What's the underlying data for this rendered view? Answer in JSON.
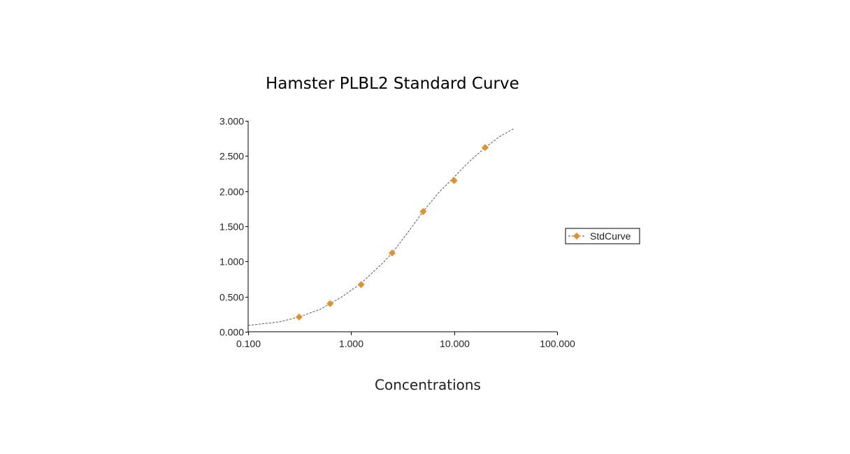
{
  "chart_data": {
    "type": "scatter",
    "title": "Hamster PLBL2 Standard Curve",
    "xlabel": "Concentrations",
    "ylabel": "",
    "x_scale": "log",
    "xlim": [
      0.1,
      100
    ],
    "ylim": [
      0,
      3
    ],
    "x_ticks": [
      0.1,
      1,
      10,
      100
    ],
    "x_tick_labels": [
      "0.100",
      "1.000",
      "10.000",
      "100.000"
    ],
    "y_ticks": [
      0,
      0.5,
      1,
      1.5,
      2,
      2.5,
      3
    ],
    "y_tick_labels": [
      "0.000",
      "0.500",
      "1.000",
      "1.500",
      "2.000",
      "2.500",
      "3.000"
    ],
    "legend_position": "right",
    "grid": false,
    "series": [
      {
        "name": "StdCurve",
        "color": "#E0922E",
        "marker": "diamond",
        "x": [
          0.3125,
          0.625,
          1.25,
          2.5,
          5,
          10,
          20
        ],
        "y": [
          0.21,
          0.4,
          0.67,
          1.12,
          1.71,
          2.15,
          2.62
        ]
      }
    ],
    "fit_curve": {
      "style": "dashed",
      "color": "#555555",
      "x": [
        0.1,
        0.2,
        0.3125,
        0.5,
        0.8,
        1.25,
        2,
        2.5,
        3.5,
        5,
        7,
        10,
        14,
        20,
        28,
        38
      ],
      "y": [
        0.09,
        0.14,
        0.21,
        0.32,
        0.49,
        0.69,
        0.97,
        1.12,
        1.4,
        1.71,
        1.97,
        2.2,
        2.42,
        2.62,
        2.78,
        2.89
      ]
    }
  }
}
